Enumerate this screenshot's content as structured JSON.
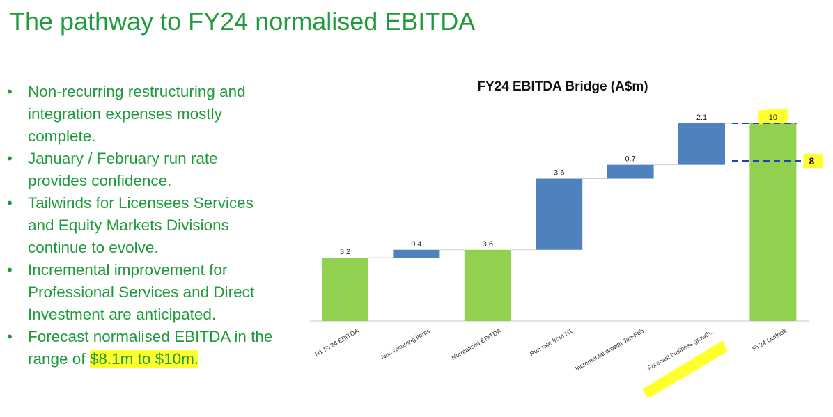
{
  "slide": {
    "title": "The pathway to FY24 normalised EBITDA",
    "bullets": [
      {
        "text": "Non-recurring restructuring and integration expenses mostly complete."
      },
      {
        "text": "January / February run rate provides confidence."
      },
      {
        "text": "Tailwinds for Licensees Services and Equity Markets Divisions continue to evolve."
      },
      {
        "text": "Incremental improvement for Professional Services and Direct Investment are anticipated."
      },
      {
        "text": "Forecast normalised EBITDA in the range of",
        "highlight": "$8.1m to $10m."
      }
    ],
    "bullet_glyph": "•",
    "highlight_color": "#ffff2e",
    "text_color": "#1f9b3b"
  },
  "chart_data": {
    "type": "waterfall",
    "title": "FY24 EBITDA Bridge (A$m)",
    "categories": [
      "H1 FY24 EBITDA",
      "Non-recurring items",
      "Normalised EBITDA",
      "Run rate from H1",
      "Incremental growth Jan-Feb",
      "Forecast business growth...",
      "FY24 Outlook"
    ],
    "values": [
      3.2,
      0.4,
      3.6,
      3.6,
      0.7,
      2.1,
      10
    ],
    "bar_kind": [
      "start",
      "delta",
      "total",
      "delta",
      "delta",
      "delta",
      "total"
    ],
    "labels": [
      "3.2",
      "0.4",
      "3.6",
      "3.6",
      "0.7",
      "2.1",
      "10"
    ],
    "annotation": {
      "value": 8.1,
      "label": "8"
    },
    "ylim": [
      0,
      10
    ],
    "colors": {
      "delta": "#4f81bd",
      "total": "#92d050",
      "dashed": "#1f3fbf",
      "highlight": "#ffff2e"
    },
    "highlighted_categories": [
      "Forecast business growth..."
    ],
    "highlighted_labels": [
      "10"
    ]
  }
}
